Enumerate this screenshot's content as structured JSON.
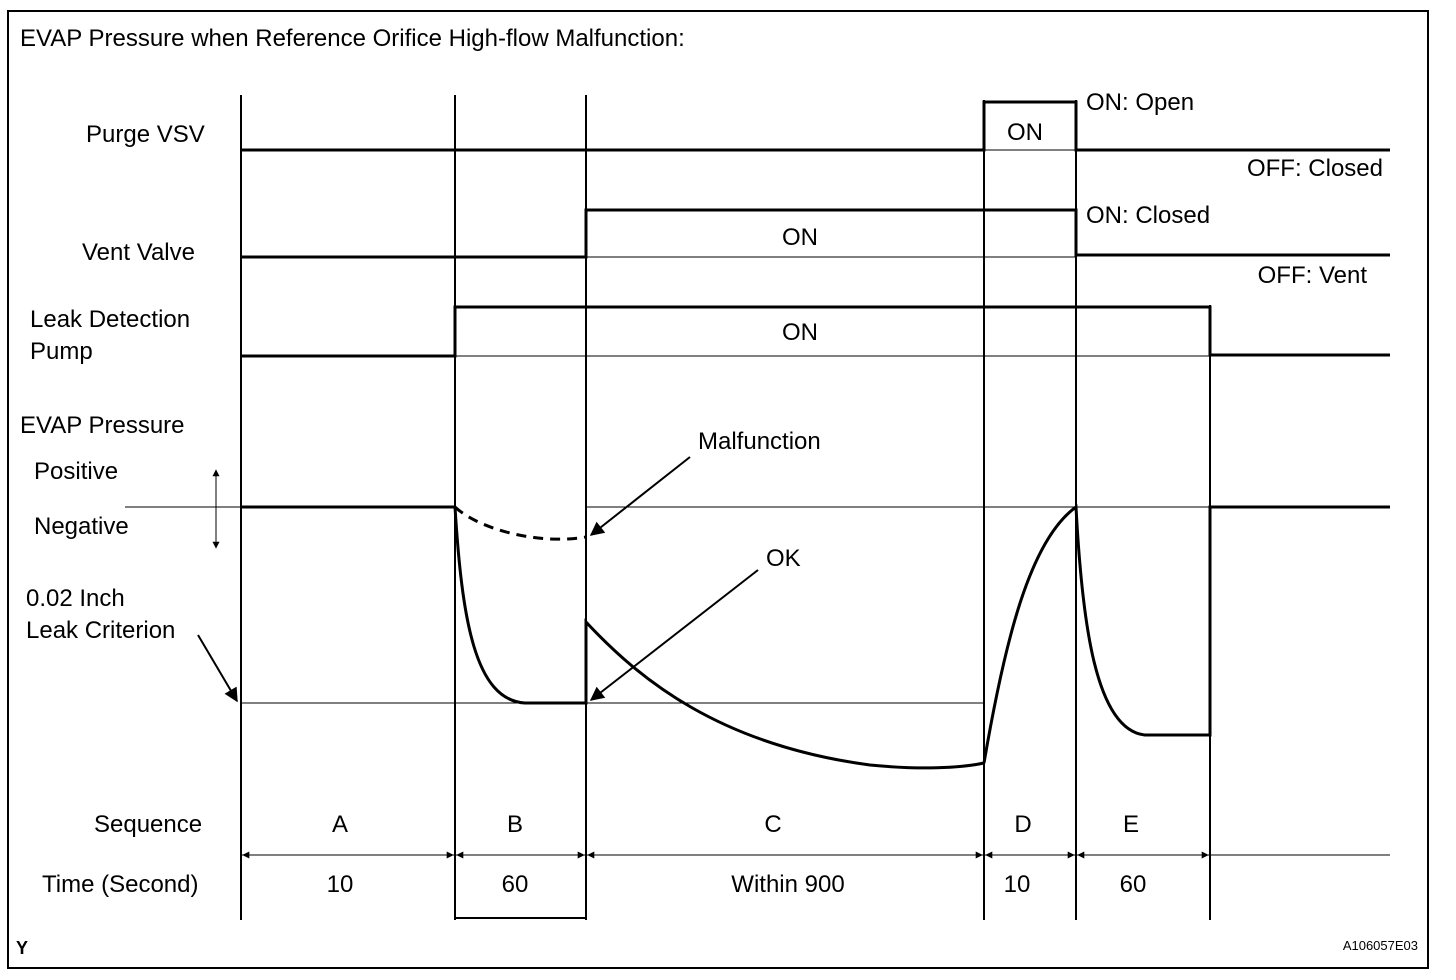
{
  "title": "EVAP Pressure when Reference Orifice High-flow Malfunction:",
  "rows": {
    "purge_vsv": "Purge VSV",
    "vent_valve": "Vent Valve",
    "pump_line1": "Leak Detection",
    "pump_line2": "Pump",
    "evap_pressure": "EVAP Pressure",
    "positive": "Positive",
    "negative": "Negative",
    "criterion_line1": "0.02 Inch",
    "criterion_line2": "Leak Criterion",
    "sequence": "Sequence",
    "time": "Time (Second)"
  },
  "state_labels": {
    "purge_on": "ON",
    "purge_on_meaning": "ON: Open",
    "purge_off_meaning": "OFF: Closed",
    "vent_on": "ON",
    "vent_on_meaning": "ON: Closed",
    "vent_off_meaning": "OFF: Vent",
    "pump_on": "ON"
  },
  "annotations": {
    "malfunction": "Malfunction",
    "ok": "OK"
  },
  "sequence": [
    {
      "label": "A",
      "time": "10"
    },
    {
      "label": "B",
      "time": "60"
    },
    {
      "label": "C",
      "time": "Within 900"
    },
    {
      "label": "D",
      "time": "10"
    },
    {
      "label": "E",
      "time": "60"
    }
  ],
  "footer": {
    "left_mark": "Y",
    "figure_id": "A106057E03"
  }
}
